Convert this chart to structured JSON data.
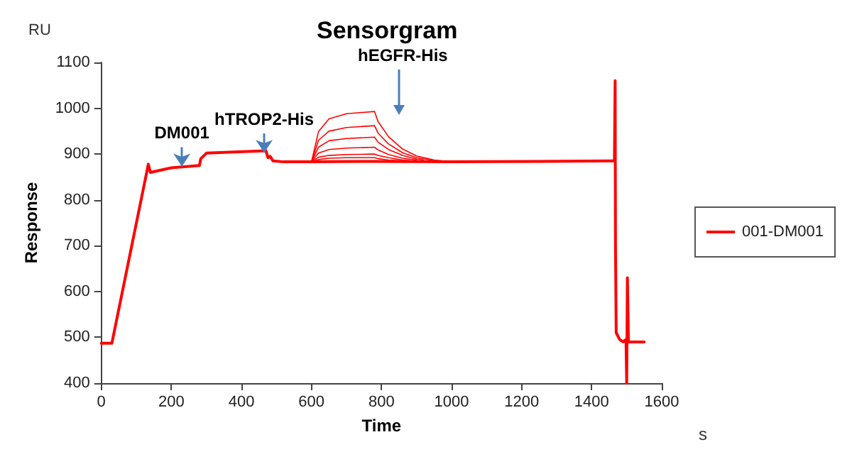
{
  "chart_data": {
    "type": "line",
    "title": "Sensorgram",
    "xlabel": "Time",
    "ylabel": "Response",
    "annotations": [
      {
        "text": "DM001",
        "x": 230,
        "y": 873
      },
      {
        "text": "hTROP2-His",
        "x": 465,
        "y": 903
      },
      "hEGFR-His",
      "RU",
      "s"
    ],
    "xlim": [
      0,
      1600
    ],
    "xticks": [
      0,
      200,
      400,
      600,
      800,
      1000,
      1200,
      1400,
      1600
    ],
    "ylim": [
      400,
      1100
    ],
    "yticks": [
      400,
      500,
      600,
      700,
      800,
      900,
      1000,
      1100
    ],
    "grid": false,
    "legend": "right",
    "marker": "none",
    "line_style": "solid",
    "series": [
      {
        "name": "001-DM001",
        "color": "#ff0000",
        "x": [
          0,
          30,
          130,
          134,
          140,
          200,
          280,
          284,
          300,
          470,
          476,
          482,
          490,
          520,
          600,
          780,
          1000,
          1460,
          1465,
          1467,
          1468,
          1470,
          1480,
          1490,
          1498,
          1500,
          1502,
          1505,
          1510,
          1550
        ],
        "values": [
          487,
          487,
          862,
          878,
          860,
          870,
          875,
          890,
          902,
          907,
          892,
          895,
          885,
          883,
          883,
          884,
          883,
          885,
          885,
          1060,
          700,
          510,
          495,
          490,
          495,
          400,
          630,
          490,
          490,
          490
        ]
      },
      {
        "color": "#ff0000",
        "x": [
          600,
          620,
          650,
          700,
          780,
          790,
          820,
          860,
          900,
          950,
          1000
        ],
        "values": [
          883,
          949,
          977,
          988,
          993,
          971,
          938,
          911,
          896,
          887,
          883
        ]
      },
      {
        "color": "#ff0000",
        "x": [
          600,
          620,
          650,
          700,
          780,
          790,
          820,
          860,
          900,
          950
        ],
        "values": [
          883,
          930,
          950,
          958,
          962,
          946,
          922,
          903,
          892,
          886
        ]
      },
      {
        "color": "#ff0000",
        "x": [
          600,
          620,
          650,
          700,
          780,
          790,
          820,
          860,
          900,
          920
        ],
        "values": [
          883,
          915,
          929,
          934,
          937,
          926,
          910,
          897,
          889,
          887
        ]
      },
      {
        "color": "#ff0000",
        "x": [
          600,
          620,
          650,
          700,
          780,
          790,
          820,
          860,
          900
        ],
        "values": [
          883,
          902,
          910,
          913,
          915,
          909,
          899,
          891,
          887
        ]
      },
      {
        "color": "#ff0000",
        "x": [
          600,
          620,
          650,
          700,
          780,
          790,
          820,
          860,
          880
        ],
        "values": [
          883,
          893,
          897,
          899,
          900,
          897,
          892,
          887,
          886
        ]
      },
      {
        "color": "#ff0000",
        "x": [
          600,
          620,
          650,
          700,
          780,
          790,
          820,
          860
        ],
        "values": [
          883,
          888,
          891,
          892,
          892,
          890,
          887,
          885
        ]
      }
    ]
  }
}
